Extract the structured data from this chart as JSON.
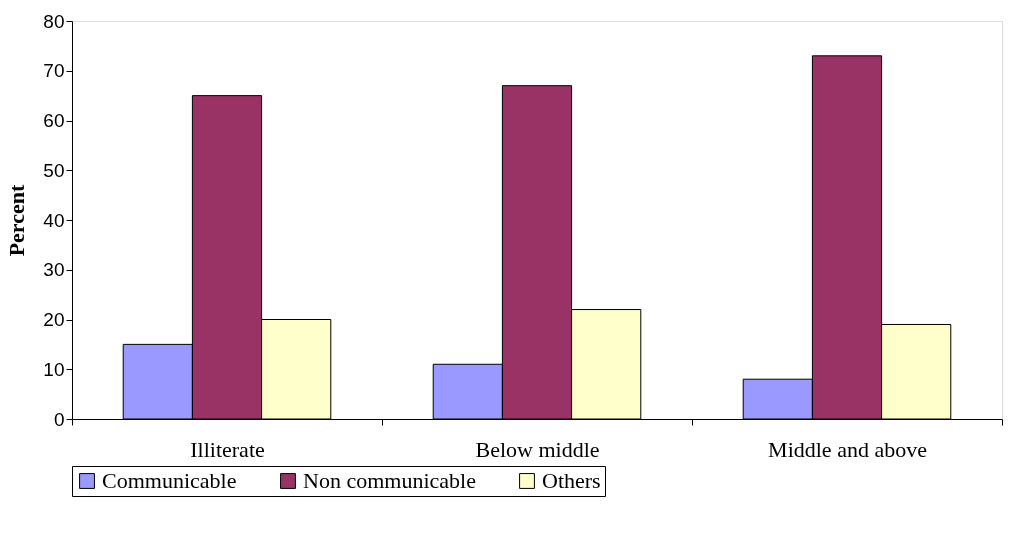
{
  "chart_data": {
    "type": "bar",
    "ylabel": "Percent",
    "categories": [
      "Illiterate",
      "Below middle",
      "Middle and above"
    ],
    "series": [
      {
        "name": "Communicable",
        "color": "#9999ff",
        "values": [
          15,
          11,
          8
        ]
      },
      {
        "name": "Non communicable",
        "color": "#993366",
        "values": [
          65,
          67,
          73
        ]
      },
      {
        "name": "Others",
        "color": "#ffffcc",
        "values": [
          20,
          22,
          19
        ]
      }
    ],
    "ylim": [
      0,
      80
    ],
    "yticks": [
      0,
      10,
      20,
      30,
      40,
      50,
      60,
      70,
      80
    ],
    "grid": false,
    "legend": "bottom"
  }
}
